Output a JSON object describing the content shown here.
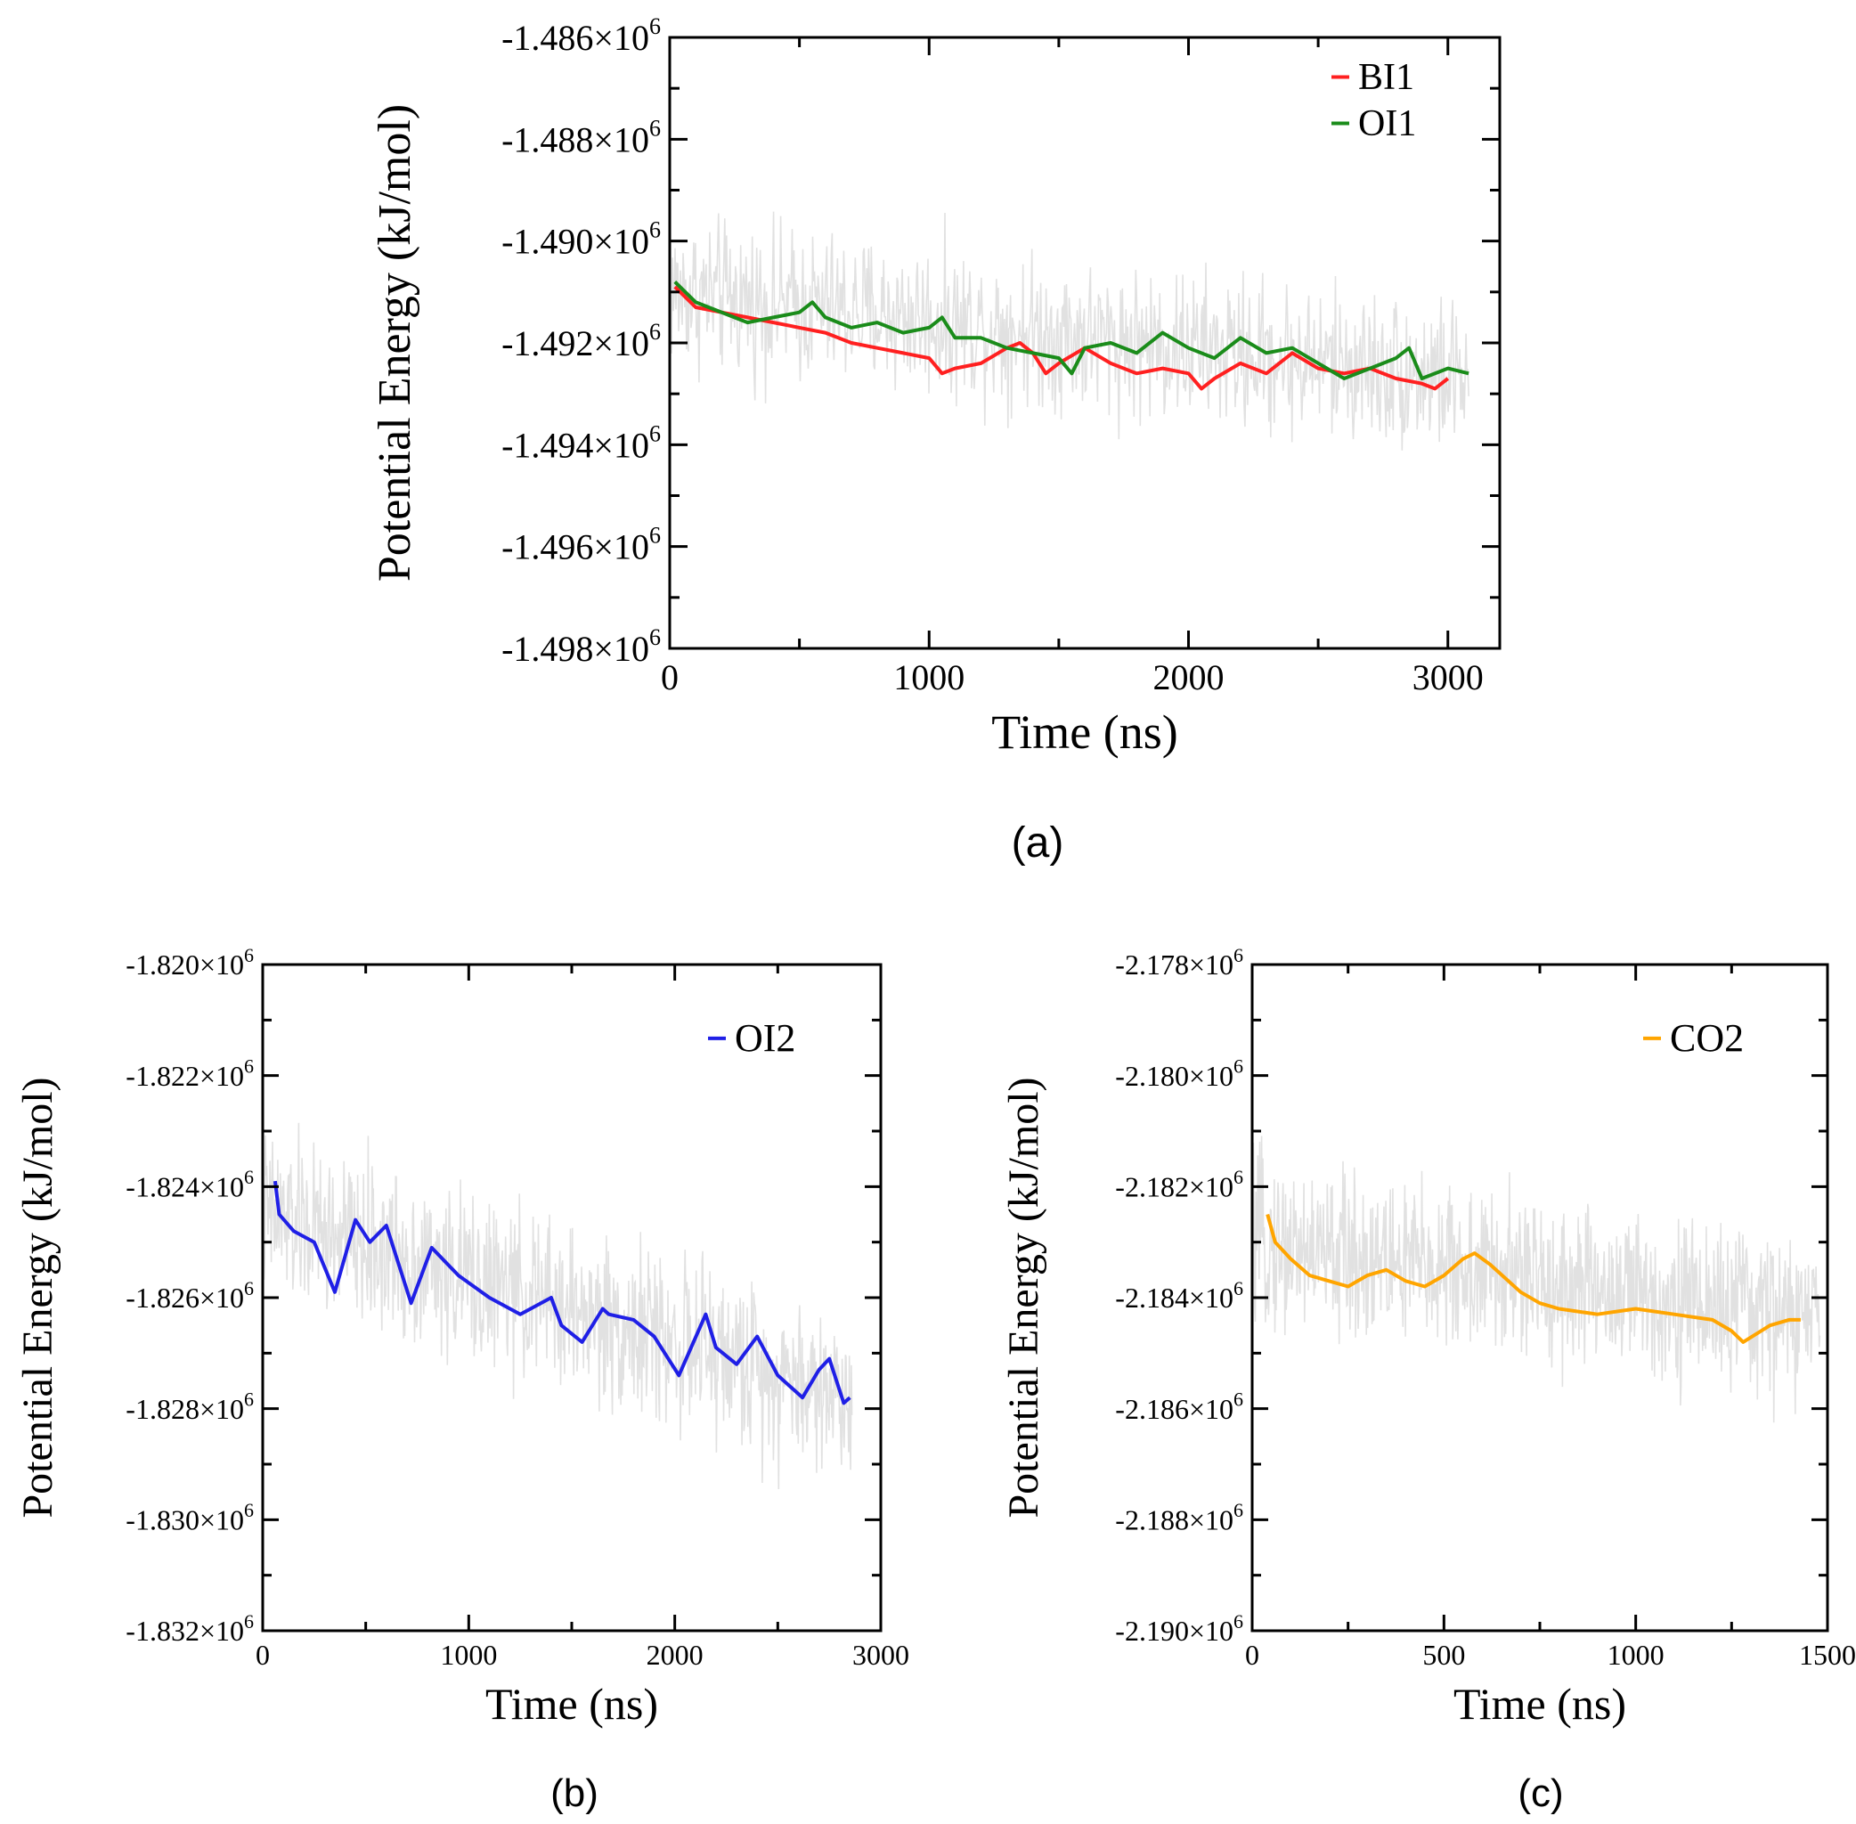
{
  "colors": {
    "background": "#ffffff",
    "axis": "#000000",
    "noise": "#dcdcdc",
    "BI1": "#ff2020",
    "OI1": "#1a8c1a",
    "OI2": "#1f1fe6",
    "CO2": "#ffa500"
  },
  "chart_data": [
    {
      "id": "a",
      "type": "line",
      "caption": "(a)",
      "xlabel": "Time (ns)",
      "ylabel": "Potential Energy (kJ/mol)",
      "xlim": [
        0,
        3200
      ],
      "ylim": [
        -1.498,
        -1.486
      ],
      "x_ticks": [
        0,
        1000,
        2000,
        3000
      ],
      "x_tick_labels": [
        "0",
        "1000",
        "2000",
        "3000"
      ],
      "y_ticks": [
        -1.486,
        -1.488,
        -1.49,
        -1.492,
        -1.494,
        -1.496,
        -1.498
      ],
      "y_tick_labels": [
        "-1.486×10",
        "-1.488×10",
        "-1.490×10",
        "-1.492×10",
        "-1.494×10",
        "-1.496×10",
        "-1.498×10"
      ],
      "y_tick_exponent": "6",
      "y_unit_multiplier": 1000000,
      "legend_position": "top-right",
      "noise": {
        "x_start": 0,
        "x_end": 3080,
        "center_start": -1.491,
        "center_end": -1.4927,
        "amplitude": 0.0022
      },
      "series": [
        {
          "name": "BI1",
          "color": "#ff2020",
          "x": [
            20,
            100,
            200,
            300,
            400,
            500,
            600,
            700,
            800,
            900,
            1000,
            1050,
            1100,
            1200,
            1300,
            1350,
            1400,
            1450,
            1500,
            1600,
            1700,
            1800,
            1900,
            2000,
            2050,
            2100,
            2200,
            2300,
            2400,
            2500,
            2600,
            2700,
            2800,
            2900,
            2950,
            3000
          ],
          "values": [
            -1.4909,
            -1.4913,
            -1.4914,
            -1.4915,
            -1.4916,
            -1.4917,
            -1.4918,
            -1.492,
            -1.4921,
            -1.4922,
            -1.4923,
            -1.4926,
            -1.4925,
            -1.4924,
            -1.4921,
            -1.492,
            -1.4922,
            -1.4926,
            -1.4924,
            -1.4921,
            -1.4924,
            -1.4926,
            -1.4925,
            -1.4926,
            -1.4929,
            -1.4927,
            -1.4924,
            -1.4926,
            -1.4922,
            -1.4925,
            -1.4926,
            -1.4925,
            -1.4927,
            -1.4928,
            -1.4929,
            -1.4927
          ]
        },
        {
          "name": "OI1",
          "color": "#1a8c1a",
          "x": [
            20,
            100,
            200,
            300,
            400,
            500,
            550,
            600,
            700,
            800,
            900,
            1000,
            1050,
            1100,
            1200,
            1300,
            1400,
            1500,
            1550,
            1600,
            1700,
            1800,
            1900,
            2000,
            2100,
            2200,
            2300,
            2400,
            2500,
            2600,
            2700,
            2800,
            2850,
            2900,
            3000,
            3080
          ],
          "values": [
            -1.4908,
            -1.4912,
            -1.4914,
            -1.4916,
            -1.4915,
            -1.4914,
            -1.4912,
            -1.4915,
            -1.4917,
            -1.4916,
            -1.4918,
            -1.4917,
            -1.4915,
            -1.4919,
            -1.4919,
            -1.4921,
            -1.4922,
            -1.4923,
            -1.4926,
            -1.4921,
            -1.492,
            -1.4922,
            -1.4918,
            -1.4921,
            -1.4923,
            -1.4919,
            -1.4922,
            -1.4921,
            -1.4924,
            -1.4927,
            -1.4925,
            -1.4923,
            -1.4921,
            -1.4927,
            -1.4925,
            -1.4926
          ]
        }
      ]
    },
    {
      "id": "b",
      "type": "line",
      "caption": "(b)",
      "xlabel": "Time (ns)",
      "ylabel": "Potential Energy (kJ/mol)",
      "xlim": [
        0,
        3000
      ],
      "ylim": [
        -1.832,
        -1.82
      ],
      "x_ticks": [
        0,
        1000,
        2000,
        3000
      ],
      "x_tick_labels": [
        "0",
        "1000",
        "2000",
        "3000"
      ],
      "y_ticks": [
        -1.82,
        -1.822,
        -1.824,
        -1.826,
        -1.828,
        -1.83,
        -1.832
      ],
      "y_tick_labels": [
        "-1.820×10",
        "-1.822×10",
        "-1.824×10",
        "-1.826×10",
        "-1.828×10",
        "-1.830×10",
        "-1.832×10"
      ],
      "y_tick_exponent": "6",
      "y_unit_multiplier": 1000000,
      "legend_position": "top-right",
      "noise": {
        "x_start": 0,
        "x_end": 2860,
        "center_start": -1.8245,
        "center_end": -1.8278,
        "amplitude": 0.0022
      },
      "series": [
        {
          "name": "OI2",
          "color": "#1f1fe6",
          "x": [
            60,
            80,
            150,
            250,
            350,
            450,
            520,
            600,
            720,
            820,
            950,
            1100,
            1250,
            1400,
            1450,
            1550,
            1650,
            1680,
            1800,
            1900,
            2020,
            2150,
            2200,
            2300,
            2400,
            2500,
            2620,
            2700,
            2750,
            2820,
            2850
          ],
          "values": [
            -1.8239,
            -1.8245,
            -1.8248,
            -1.825,
            -1.8259,
            -1.8246,
            -1.825,
            -1.8247,
            -1.8261,
            -1.8251,
            -1.8256,
            -1.826,
            -1.8263,
            -1.826,
            -1.8265,
            -1.8268,
            -1.8262,
            -1.8263,
            -1.8264,
            -1.8267,
            -1.8274,
            -1.8263,
            -1.8269,
            -1.8272,
            -1.8267,
            -1.8274,
            -1.8278,
            -1.8273,
            -1.8271,
            -1.8279,
            -1.8278
          ]
        }
      ]
    },
    {
      "id": "c",
      "type": "line",
      "caption": "(c)",
      "xlabel": "Time (ns)",
      "ylabel": "Potential Energy (kJ/mol)",
      "xlim": [
        0,
        1500
      ],
      "ylim": [
        -2.19,
        -2.178
      ],
      "x_ticks": [
        0,
        500,
        1000,
        1500
      ],
      "x_tick_labels": [
        "0",
        "500",
        "1000",
        "1500"
      ],
      "y_ticks": [
        -2.178,
        -2.18,
        -2.182,
        -2.184,
        -2.186,
        -2.188,
        -2.19
      ],
      "y_tick_labels": [
        "-2.178×10",
        "-2.180×10",
        "-2.182×10",
        "-2.184×10",
        "-2.186×10",
        "-2.188×10",
        "-2.190×10"
      ],
      "y_tick_exponent": "6",
      "y_unit_multiplier": 1000000,
      "legend_position": "top-right",
      "noise": {
        "x_start": 0,
        "x_end": 1480,
        "center_start": -2.183,
        "center_end": -2.1844,
        "amplitude": 0.0022
      },
      "series": [
        {
          "name": "CO2",
          "color": "#ffa500",
          "x": [
            40,
            60,
            100,
            150,
            200,
            250,
            300,
            350,
            400,
            450,
            500,
            550,
            580,
            620,
            700,
            750,
            800,
            900,
            1000,
            1100,
            1200,
            1250,
            1280,
            1350,
            1400,
            1430
          ],
          "values": [
            -2.1825,
            -2.183,
            -2.1833,
            -2.1836,
            -2.1837,
            -2.1838,
            -2.1836,
            -2.1835,
            -2.1837,
            -2.1838,
            -2.1836,
            -2.1833,
            -2.1832,
            -2.1834,
            -2.1839,
            -2.1841,
            -2.1842,
            -2.1843,
            -2.1842,
            -2.1843,
            -2.1844,
            -2.1846,
            -2.1848,
            -2.1845,
            -2.1844,
            -2.1844
          ]
        }
      ]
    }
  ]
}
